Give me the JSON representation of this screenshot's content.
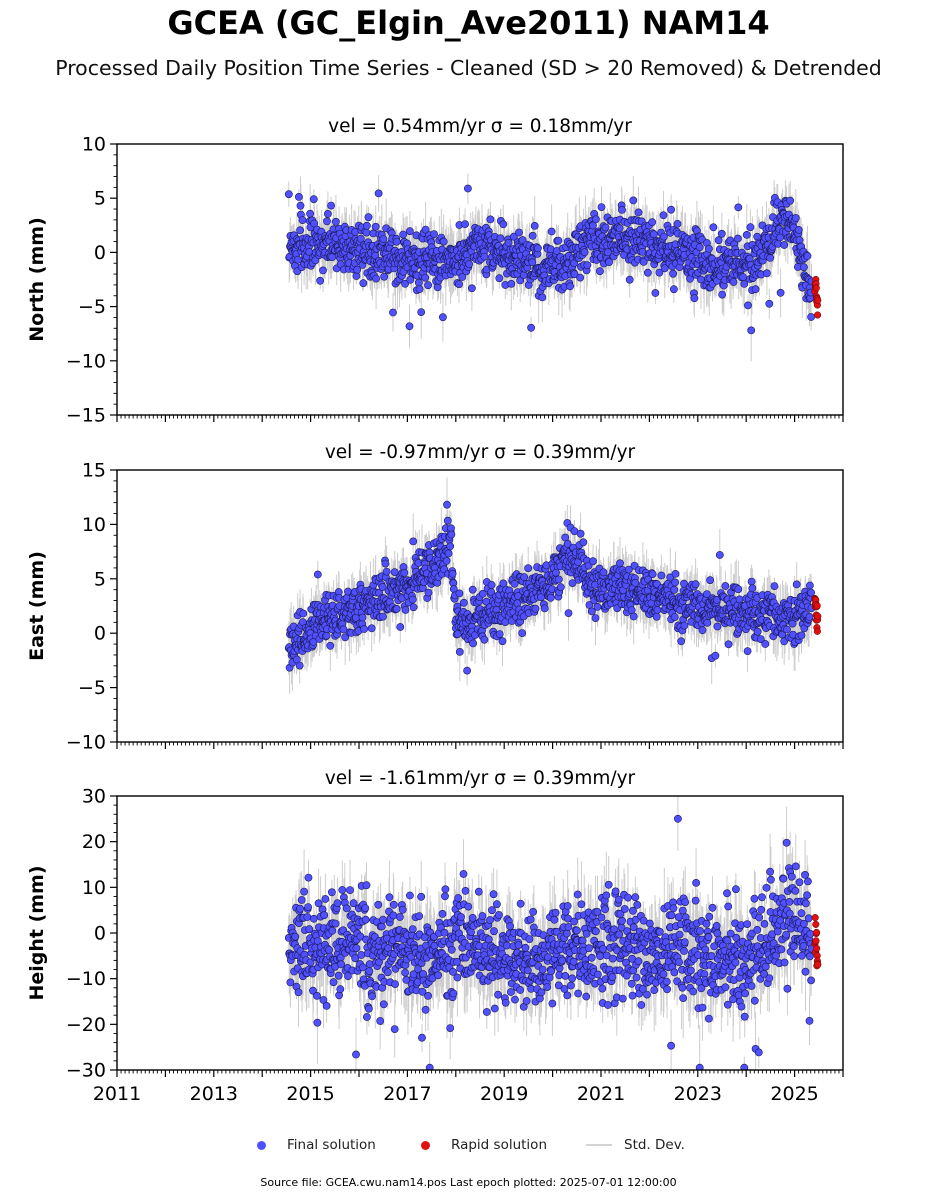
{
  "title": "GCEA (GC_Elgin_Ave2011) NAM14",
  "subtitle": "Processed Daily Position Time Series - Cleaned (SD > 20 Removed) & Detrended",
  "footer": "Source file: GCEA.cwu.nam14.pos  Last epoch plotted: 2025-07-01 12:00:00",
  "legend": {
    "final_label": "Final solution",
    "rapid_label": "Rapid solution",
    "std_label": "Std. Dev."
  },
  "colors": {
    "final": "#5050ff",
    "final_edge": "#1a1a55",
    "rapid": "#e01010",
    "std": "#c8c8c8"
  },
  "chart_data": [
    {
      "type": "scatter",
      "panel": "north",
      "title": "vel = 0.54mm/yr   σ = 0.18mm/yr",
      "ylabel": "North (mm)",
      "xlim": [
        2011.0,
        2026.0
      ],
      "ylim": [
        -15,
        10
      ],
      "yticks": [
        -15,
        -10,
        -5,
        0,
        5,
        10
      ],
      "xticks": [
        "2011",
        "2013",
        "2015",
        "2017",
        "2019",
        "2021",
        "2023",
        "2025"
      ],
      "series": [
        {
          "name": "Final solution",
          "x": [
            2014.55,
            2015.0,
            2015.5,
            2016.0,
            2016.5,
            2017.0,
            2017.5,
            2017.9,
            2018.3,
            2018.8,
            2019.2,
            2019.7,
            2020.2,
            2020.7,
            2021.2,
            2021.7,
            2022.2,
            2022.7,
            2023.2,
            2023.7,
            2024.2,
            2024.5,
            2024.8,
            2025.0,
            2025.2,
            2025.35
          ],
          "y": [
            0.5,
            0.8,
            0.6,
            0.3,
            0.0,
            -0.5,
            -0.8,
            -1.0,
            0.5,
            0.2,
            -0.5,
            -1.2,
            -1.5,
            0.8,
            1.0,
            1.2,
            0.5,
            -0.2,
            -1.0,
            -1.3,
            -1.2,
            1.5,
            3.5,
            2.5,
            -1.5,
            -3.8
          ]
        },
        {
          "name": "Rapid solution",
          "x": [
            2025.42,
            2025.45,
            2025.48
          ],
          "y": [
            -2.5,
            -3.5,
            -5.5
          ]
        }
      ]
    },
    {
      "type": "scatter",
      "panel": "east",
      "title": "vel = -0.97mm/yr   σ = 0.39mm/yr",
      "ylabel": "East (mm)",
      "xlim": [
        2011.0,
        2026.0
      ],
      "ylim": [
        -10,
        15
      ],
      "yticks": [
        -10,
        -5,
        0,
        5,
        10,
        15
      ],
      "xticks": [
        "2011",
        "2013",
        "2015",
        "2017",
        "2019",
        "2021",
        "2023",
        "2025"
      ],
      "series": [
        {
          "name": "Final solution",
          "x": [
            2014.55,
            2015.0,
            2015.5,
            2016.0,
            2016.5,
            2017.0,
            2017.5,
            2017.9,
            2018.0,
            2018.5,
            2019.0,
            2019.5,
            2020.0,
            2020.3,
            2020.8,
            2021.3,
            2021.8,
            2022.3,
            2022.8,
            2023.3,
            2023.8,
            2024.3,
            2024.8,
            2025.0,
            2025.35
          ],
          "y": [
            -1.0,
            0.0,
            1.5,
            2.5,
            3.5,
            4.5,
            6.0,
            8.5,
            1.0,
            1.5,
            2.5,
            3.5,
            5.0,
            7.5,
            4.5,
            4.0,
            3.5,
            3.0,
            2.5,
            2.0,
            2.0,
            1.5,
            1.0,
            1.0,
            2.5
          ]
        },
        {
          "name": "Rapid solution",
          "x": [
            2025.42,
            2025.45,
            2025.48
          ],
          "y": [
            3.0,
            2.0,
            1.0
          ]
        }
      ]
    },
    {
      "type": "scatter",
      "panel": "height",
      "title": "vel = -1.61mm/yr   σ = 0.39mm/yr",
      "ylabel": "Height (mm)",
      "xlim": [
        2011.0,
        2026.0
      ],
      "ylim": [
        -30,
        30
      ],
      "yticks": [
        -30,
        -20,
        -10,
        0,
        10,
        20,
        30
      ],
      "xticks": [
        "2011",
        "2013",
        "2015",
        "2017",
        "2019",
        "2021",
        "2023",
        "2025"
      ],
      "series": [
        {
          "name": "Final solution",
          "x": [
            2014.55,
            2015.0,
            2015.5,
            2016.0,
            2016.5,
            2017.0,
            2017.5,
            2018.0,
            2018.5,
            2019.0,
            2019.5,
            2020.0,
            2020.5,
            2021.0,
            2021.5,
            2022.0,
            2022.5,
            2023.0,
            2023.5,
            2024.0,
            2024.5,
            2024.9,
            2025.2,
            2025.35
          ],
          "y": [
            -5,
            -3,
            -4,
            -2,
            -5,
            -3,
            -6,
            -2,
            -4,
            -5,
            -6,
            -3,
            -4,
            -2,
            -3,
            -5,
            -4,
            -3,
            -6,
            -7,
            -2,
            5,
            2,
            -4
          ]
        },
        {
          "name": "Rapid solution",
          "x": [
            2025.42,
            2025.45,
            2025.48
          ],
          "y": [
            2,
            -3,
            -8
          ]
        }
      ]
    }
  ]
}
